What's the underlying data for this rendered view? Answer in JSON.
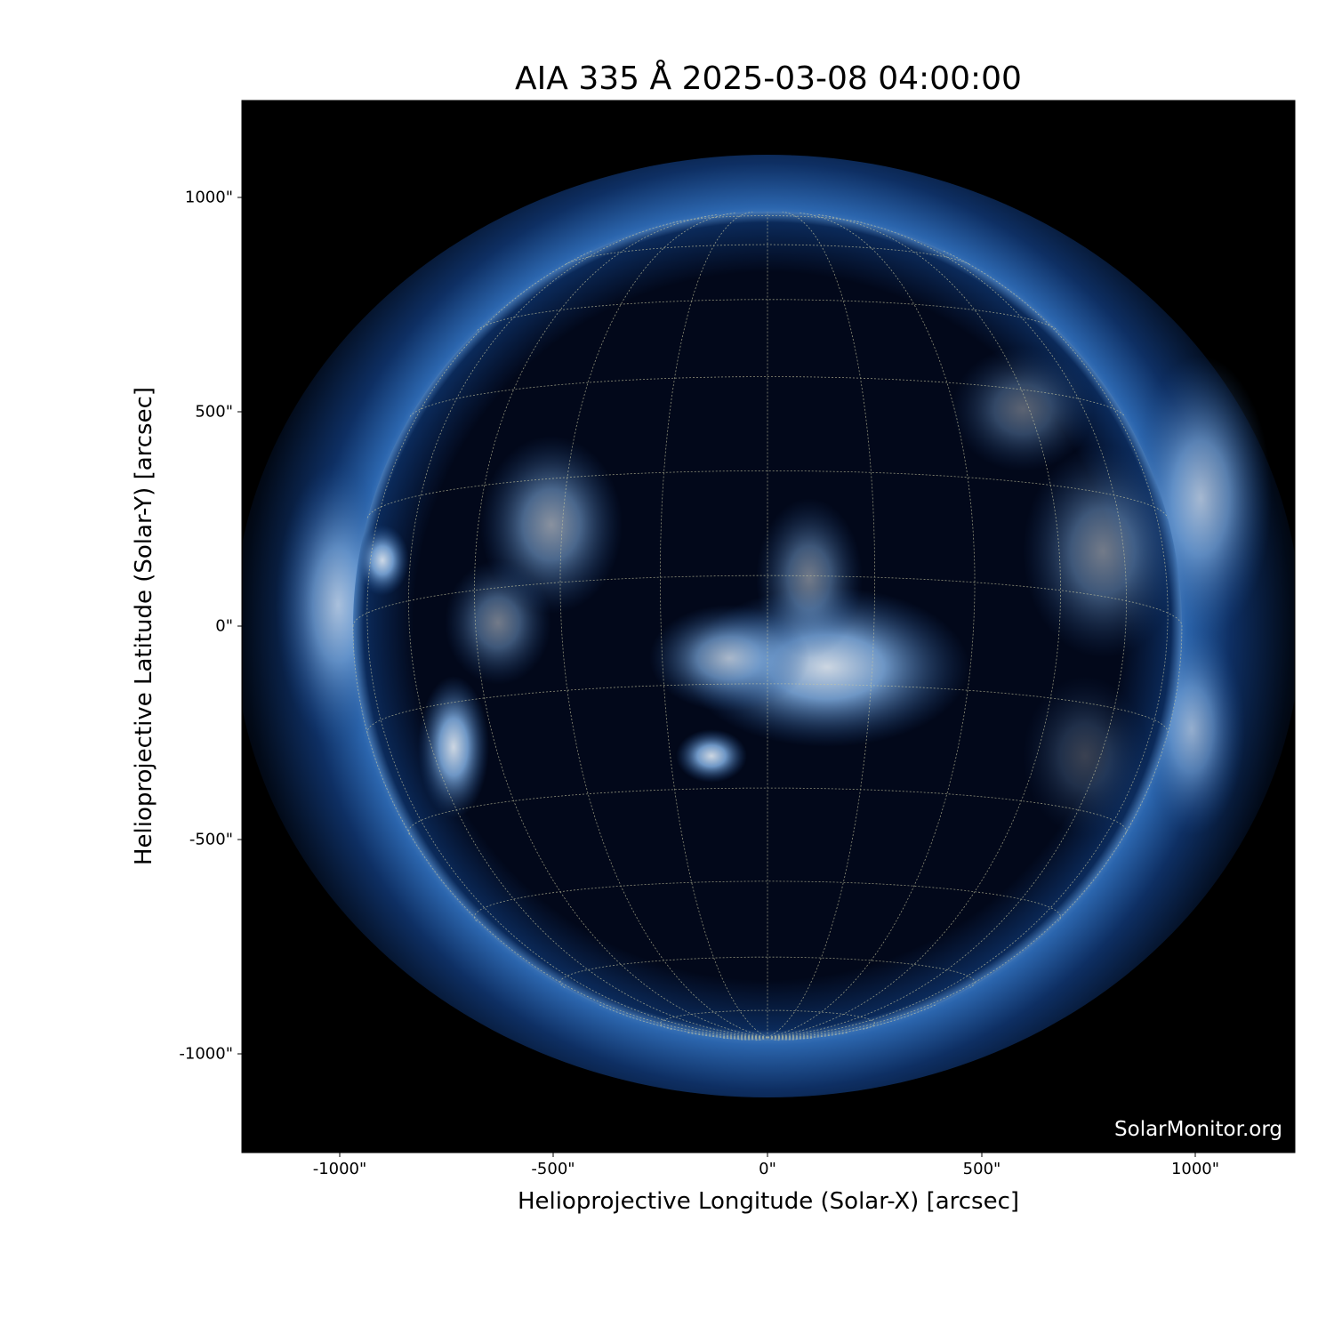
{
  "title": "AIA 335 Å 2025-03-08 04:00:00",
  "xlabel": "Helioprojective Longitude (Solar-X) [arcsec]",
  "ylabel": "Helioprojective Latitude (Solar-Y) [arcsec]",
  "x_ticks": [
    "-1000\"",
    "-500\"",
    "0\"",
    "500\"",
    "1000\""
  ],
  "y_ticks": [
    "1000\"",
    "500\"",
    "0\"",
    "-500\"",
    "-1000\""
  ],
  "x_tick_values": [
    -1000,
    -500,
    0,
    500,
    1000
  ],
  "y_tick_values": [
    1000,
    500,
    0,
    -500,
    -1000
  ],
  "axis_range_arcsec": {
    "x": [
      -1230,
      1230
    ],
    "y": [
      -1230,
      1230
    ]
  },
  "watermark": "SolarMonitor.org",
  "colors": {
    "background": "#000000",
    "disk": "#02081a",
    "corona": "#1f5ea8",
    "bright": "#dbe8f7",
    "grid": "#c8c8a0"
  },
  "grid_spacing_deg": 15
}
